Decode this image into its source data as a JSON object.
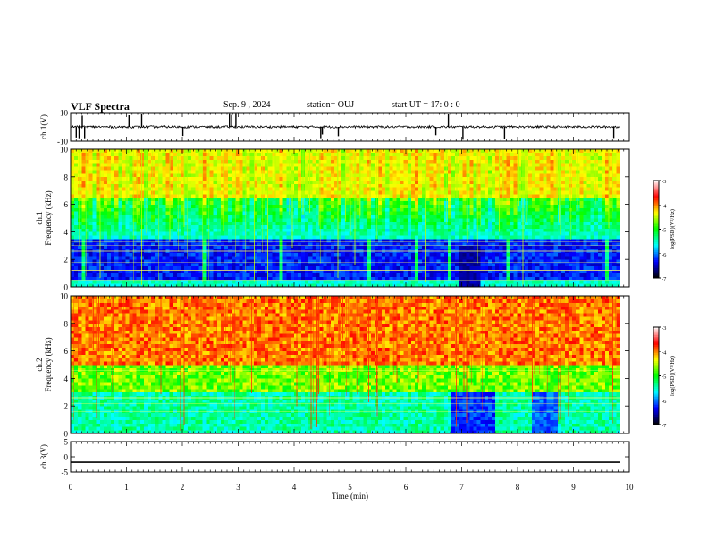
{
  "header": {
    "title": "VLF Spectra",
    "date": "Sep. 9  , 2024",
    "station": "station= OUJ",
    "start_ut": "start  UT  =   17: 0  : 0"
  },
  "chart_data": [
    {
      "type": "line",
      "panel": "ch1-waveform",
      "ylabel": "ch.1(V)",
      "ylim": [
        -10,
        10
      ],
      "yticks": [
        "10",
        "-10"
      ],
      "xlim": [
        0,
        10
      ],
      "baseline": 0,
      "color": "#000000"
    },
    {
      "type": "heatmap",
      "panel": "ch1-spectrogram",
      "ylabel_line1": "ch.1",
      "ylabel_line2": "Frequency  (kHz)",
      "ylim": [
        0,
        10
      ],
      "yticks": [
        "0",
        "2",
        "4",
        "6",
        "8",
        "10"
      ],
      "xlim": [
        0,
        9.83
      ],
      "colorbar": {
        "label": "log(PSD)(V²/Hz)",
        "range": [
          -7,
          -3
        ],
        "ticks": [
          "-3",
          "-4",
          "-5",
          "-6",
          "-7"
        ],
        "colors": [
          "#000000",
          "#0000ff",
          "#00ffff",
          "#00ff00",
          "#ffff00",
          "#ff0000",
          "#ffffff"
        ]
      }
    },
    {
      "type": "heatmap",
      "panel": "ch2-spectrogram",
      "ylabel_line1": "ch.2",
      "ylabel_line2": "Frequency  (kHz)",
      "ylim": [
        0,
        10
      ],
      "yticks": [
        "0",
        "2",
        "4",
        "6",
        "8",
        "10"
      ],
      "xlim": [
        0,
        9.83
      ],
      "colorbar": {
        "label": "log(PSD)(V²/Hz)",
        "range": [
          -7,
          -3
        ],
        "ticks": [
          "-3",
          "-4",
          "-5",
          "-6",
          "-7"
        ],
        "colors": [
          "#000000",
          "#0000ff",
          "#00ffff",
          "#00ff00",
          "#ffff00",
          "#ff0000",
          "#ffffff"
        ]
      }
    },
    {
      "type": "line",
      "panel": "ch3-waveform",
      "ylabel": "ch.3(V)",
      "ylim": [
        -5,
        5
      ],
      "yticks": [
        "5",
        "0",
        "-5"
      ],
      "xlim": [
        0,
        10
      ],
      "x": [
        0,
        9.83
      ],
      "y": [
        -1.8,
        -1.8
      ],
      "color": "#000000"
    }
  ],
  "xaxis": {
    "label": "Time  (min)",
    "ticks": [
      "0",
      "1",
      "2",
      "3",
      "4",
      "5",
      "6",
      "7",
      "8",
      "9",
      "10"
    ]
  }
}
